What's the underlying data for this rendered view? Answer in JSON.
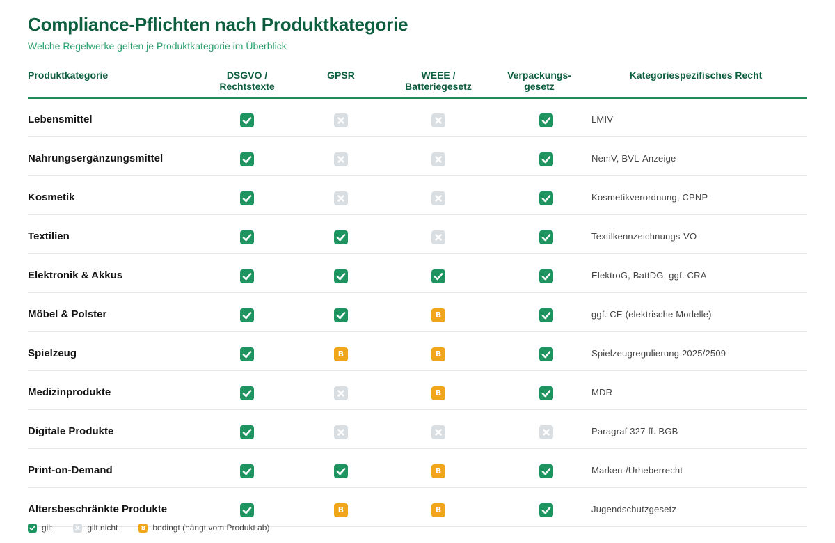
{
  "title": "Compliance-Pflichten nach Produktkategorie",
  "subtitle": "Welche Regelwerke gelten je Produktkategorie im Überblick",
  "columns": {
    "category": "Produktkategorie",
    "dsgvo": [
      "DSGVO /",
      "Rechtstexte"
    ],
    "gpsr": "GPSR",
    "weee": [
      "WEEE /",
      "Batteriegesetz"
    ],
    "pack": [
      "Verpackungs-",
      "gesetz"
    ],
    "law": "Kategoriespezifisches Recht"
  },
  "status_symbols": {
    "cond": "B"
  },
  "colors": {
    "yes": "#1e9460",
    "no": "#d9dee3",
    "cond": "#f0a51a",
    "title": "#0d5e3f",
    "subtitle": "#2aa06c"
  },
  "rows": [
    {
      "category": "Lebensmittel",
      "dsgvo": "yes",
      "gpsr": "no",
      "weee": "no",
      "pack": "yes",
      "law": "LMIV"
    },
    {
      "category": "Nahrungsergänzungsmittel",
      "dsgvo": "yes",
      "gpsr": "no",
      "weee": "no",
      "pack": "yes",
      "law": "NemV, BVL-Anzeige"
    },
    {
      "category": "Kosmetik",
      "dsgvo": "yes",
      "gpsr": "no",
      "weee": "no",
      "pack": "yes",
      "law": "Kosmetikverordnung, CPNP"
    },
    {
      "category": "Textilien",
      "dsgvo": "yes",
      "gpsr": "yes",
      "weee": "no",
      "pack": "yes",
      "law": "Textilkennzeichnungs-VO"
    },
    {
      "category": "Elektronik & Akkus",
      "dsgvo": "yes",
      "gpsr": "yes",
      "weee": "yes",
      "pack": "yes",
      "law": "ElektroG, BattDG, ggf. CRA"
    },
    {
      "category": "Möbel & Polster",
      "dsgvo": "yes",
      "gpsr": "yes",
      "weee": "cond",
      "pack": "yes",
      "law": "ggf. CE (elektrische Modelle)"
    },
    {
      "category": "Spielzeug",
      "dsgvo": "yes",
      "gpsr": "cond",
      "weee": "cond",
      "pack": "yes",
      "law": "Spielzeugregulierung 2025/2509"
    },
    {
      "category": "Medizinprodukte",
      "dsgvo": "yes",
      "gpsr": "no",
      "weee": "cond",
      "pack": "yes",
      "law": "MDR"
    },
    {
      "category": "Digitale Produkte",
      "dsgvo": "yes",
      "gpsr": "no",
      "weee": "no",
      "pack": "no",
      "law": "Paragraf 327 ff. BGB"
    },
    {
      "category": "Print-on-Demand",
      "dsgvo": "yes",
      "gpsr": "yes",
      "weee": "cond",
      "pack": "yes",
      "law": "Marken-/Urheberrecht"
    },
    {
      "category": "Altersbeschränkte Produkte",
      "dsgvo": "yes",
      "gpsr": "cond",
      "weee": "cond",
      "pack": "yes",
      "law": "Jugendschutzgesetz"
    }
  ],
  "legend": [
    {
      "status": "yes",
      "label": "gilt"
    },
    {
      "status": "no",
      "label": "gilt nicht"
    },
    {
      "status": "cond",
      "label": "bedingt (hängt vom Produkt ab)"
    }
  ]
}
